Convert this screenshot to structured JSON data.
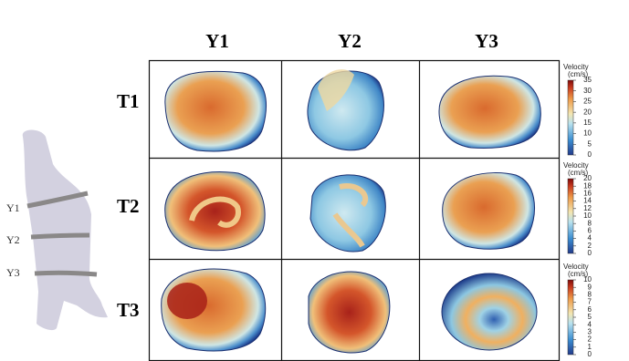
{
  "columns": [
    "Y1",
    "Y2",
    "Y3"
  ],
  "rows": [
    "T1",
    "T2",
    "T3"
  ],
  "vessel_labels": [
    "Y1",
    "Y2",
    "Y3"
  ],
  "colorbars": [
    {
      "title": "Velocity",
      "unit": "(cm/s)",
      "lim": [
        0,
        35
      ],
      "ticks": [
        0,
        5,
        10,
        15,
        20,
        25,
        30,
        35
      ]
    },
    {
      "title": "Velocity",
      "unit": "(cm/s)",
      "lim": [
        0,
        20
      ],
      "ticks": [
        0,
        2,
        4,
        6,
        8,
        10,
        12,
        14,
        16,
        18,
        20
      ]
    },
    {
      "title": "Velocity",
      "unit": "(cm/s)",
      "lim": [
        0,
        10
      ],
      "ticks": [
        0,
        1,
        2,
        3,
        4,
        5,
        6,
        7,
        8,
        9,
        10
      ]
    }
  ]
}
